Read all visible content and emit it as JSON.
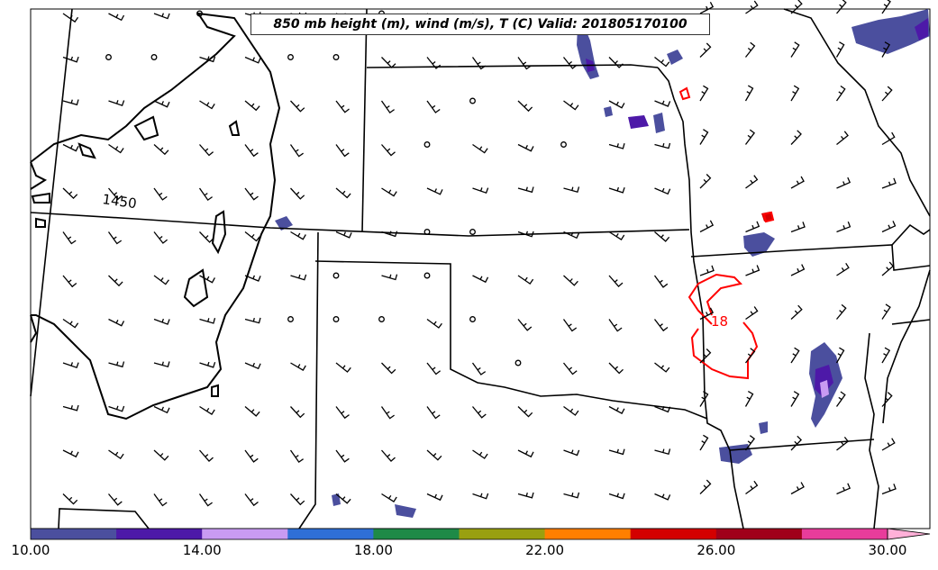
{
  "title": "850 mb height (m), wind (m/s), T (C) Valid: 201805170100",
  "contour_labels": {
    "height": "1450",
    "temperature": "18"
  },
  "colors": {
    "state_lines": "#000000",
    "temperature_contour": "#ff0000",
    "height_contour": "#000000"
  },
  "colorbar": {
    "ticks": [
      "10.00",
      "14.00",
      "18.00",
      "22.00",
      "26.00",
      "30.00"
    ],
    "colors": [
      "#4b4f9e",
      "#4d19a8",
      "#c99bf2",
      "#2f6fd6",
      "#1e8a47",
      "#99a010",
      "#ff7f00",
      "#d40000",
      "#a0001a",
      "#e83c9b",
      "#ffb0d8"
    ]
  }
}
